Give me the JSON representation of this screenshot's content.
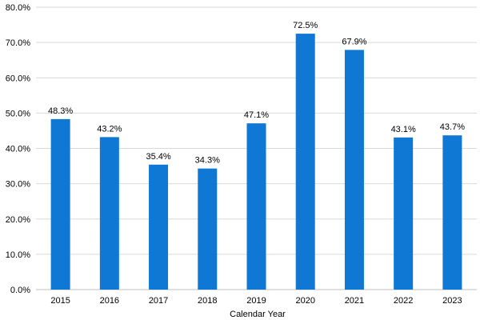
{
  "chart_data": {
    "type": "bar",
    "title": "",
    "xlabel": "Calendar Year",
    "ylabel": "",
    "categories": [
      "2015",
      "2016",
      "2017",
      "2018",
      "2019",
      "2020",
      "2021",
      "2022",
      "2023"
    ],
    "values": [
      48.3,
      43.2,
      35.4,
      34.3,
      47.1,
      72.5,
      67.9,
      43.1,
      43.7
    ],
    "data_labels": [
      "48.3%",
      "43.2%",
      "35.4%",
      "34.3%",
      "47.1%",
      "72.5%",
      "67.9%",
      "43.1%",
      "43.7%"
    ],
    "ylim": [
      0,
      80
    ],
    "y_ticks": [
      0,
      10,
      20,
      30,
      40,
      50,
      60,
      70,
      80
    ],
    "y_tick_labels": [
      "0.0%",
      "10.0%",
      "20.0%",
      "30.0%",
      "40.0%",
      "50.0%",
      "60.0%",
      "70.0%",
      "80.0%"
    ],
    "grid": true,
    "legend": "none",
    "colors": {
      "bar": "#0f78d4"
    }
  }
}
